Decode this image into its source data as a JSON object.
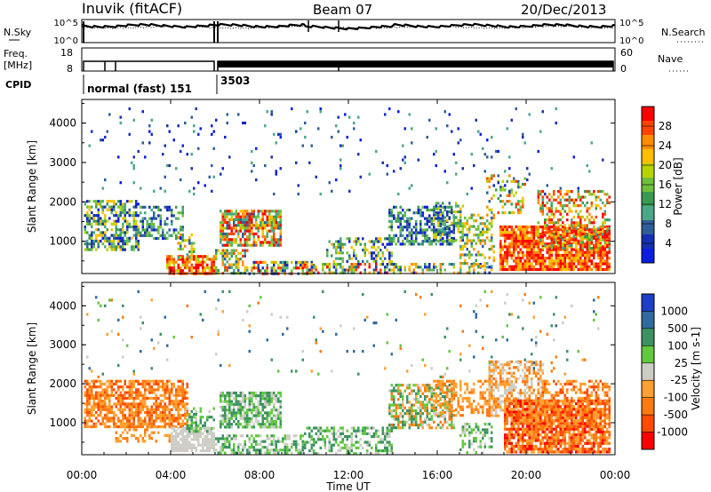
{
  "header": {
    "station": "Inuvik (fitACF)",
    "beam": "Beam 07",
    "date": "20/Dec/2013"
  },
  "panels": {
    "nsky_label": "N.Sky",
    "nsky_ticks": [
      "10^5",
      "10^0"
    ],
    "nsearch_label": "N.Search",
    "nsearch_ticks": [
      "10^5",
      "10^0"
    ],
    "freq_label": "Freq.",
    "freq_unit": "[MHz]",
    "freq_ticks": [
      "18",
      "8"
    ],
    "nave_label": "Nave",
    "nave_ticks": [
      "60",
      "0"
    ],
    "cpid_label": "CPID",
    "cpid_modes": [
      {
        "label": "normal (fast) 151",
        "start_hour": 0
      },
      {
        "label": "3503",
        "start_hour": 6
      }
    ]
  },
  "chart_data": [
    {
      "type": "heatmap",
      "panel": "power",
      "title": "",
      "xlabel": "",
      "ylabel": "Slant Range [km]",
      "x_range_hours": [
        0,
        24
      ],
      "y_range_km": [
        180,
        4600
      ],
      "y_ticks": [
        "1000",
        "2000",
        "3000",
        "4000"
      ],
      "colorbar": {
        "label": "Power [dB]",
        "ticks": [
          "28",
          "24",
          "20",
          "16",
          "12",
          "8",
          "4"
        ],
        "colors": [
          "#ff0000",
          "#ff4400",
          "#ff8c00",
          "#ffbe00",
          "#b8d400",
          "#6ec03c",
          "#3a9a50",
          "#4aa888",
          "#2e5e9a",
          "#1630b0",
          "#0b1ee0"
        ]
      }
    },
    {
      "type": "heatmap",
      "panel": "velocity",
      "title": "",
      "xlabel": "Time UT",
      "ylabel": "Slant Range [km]",
      "x_range_hours": [
        0,
        24
      ],
      "x_ticks": [
        "00:00",
        "04:00",
        "08:00",
        "12:00",
        "16:00",
        "20:00",
        "00:00"
      ],
      "y_range_km": [
        180,
        4600
      ],
      "y_ticks": [
        "1000",
        "2000",
        "3000",
        "4000"
      ],
      "colorbar": {
        "label": "Velocity [m s-1]",
        "ticks": [
          "1000",
          "500",
          "100",
          "25",
          "-25",
          "-100",
          "-500",
          "-1000"
        ],
        "colors": [
          "#1c3ec8",
          "#2f6aa0",
          "#3c9360",
          "#62c840",
          "#cdcdc5",
          "#ffa030",
          "#ff7a10",
          "#ff4a00",
          "#ff0000"
        ]
      }
    }
  ]
}
